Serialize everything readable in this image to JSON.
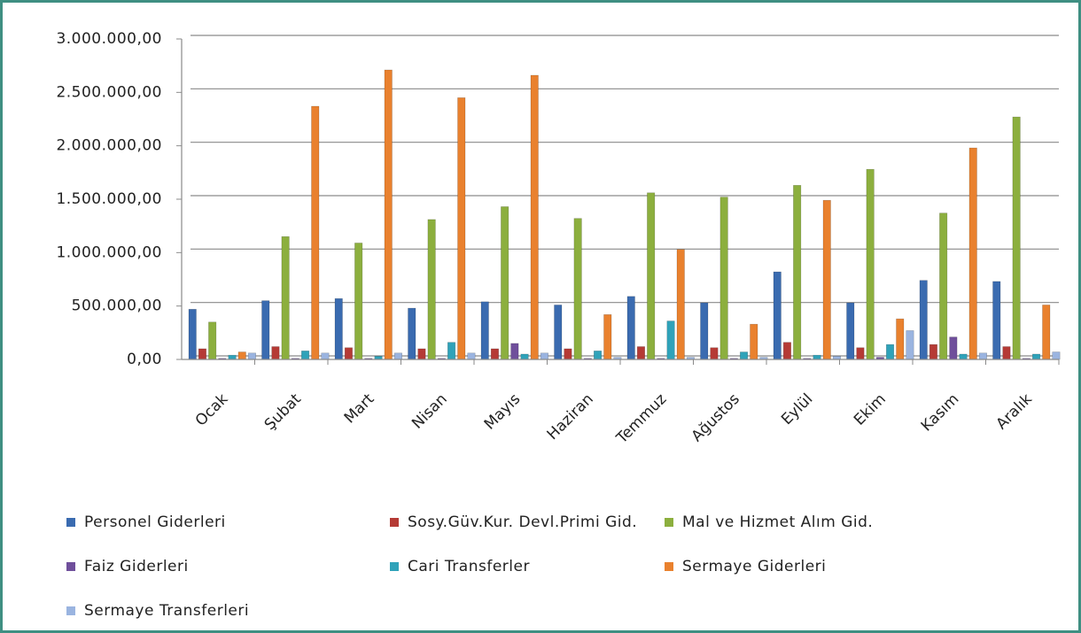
{
  "chart_data": {
    "type": "bar",
    "categories": [
      "Ocak",
      "Şubat",
      "Mart",
      "Nisan",
      "Mayıs",
      "Haziran",
      "Temmuz",
      "Ağustos",
      "Eylül",
      "Ekim",
      "Kasım",
      "Aralık"
    ],
    "series": [
      {
        "name": "Personel Giderleri",
        "color": "#3a6bb0",
        "values": [
          470000,
          550000,
          570000,
          480000,
          540000,
          510000,
          590000,
          530000,
          820000,
          530000,
          740000,
          730000
        ]
      },
      {
        "name": "Sosy.Güv.Kur. Devl.Primi Gid.",
        "color": "#b53a35",
        "values": [
          100000,
          120000,
          110000,
          100000,
          100000,
          100000,
          120000,
          110000,
          160000,
          110000,
          140000,
          120000
        ]
      },
      {
        "name": "Mal ve Hizmet Alım Gid.",
        "color": "#8caf3e",
        "values": [
          350000,
          1150000,
          1090000,
          1310000,
          1430000,
          1320000,
          1560000,
          1520000,
          1630000,
          1780000,
          1370000,
          2270000
        ]
      },
      {
        "name": "Faiz Giderleri",
        "color": "#6f4f9b",
        "values": [
          10000,
          10000,
          10000,
          10000,
          150000,
          10000,
          10000,
          10000,
          10000,
          20000,
          210000,
          10000
        ]
      },
      {
        "name": "Cari Transferler",
        "color": "#2fa2b9",
        "values": [
          40000,
          80000,
          30000,
          160000,
          50000,
          80000,
          360000,
          70000,
          40000,
          140000,
          50000,
          50000
        ]
      },
      {
        "name": "Sermaye Giderleri",
        "color": "#e9812e",
        "values": [
          70000,
          2370000,
          2710000,
          2450000,
          2660000,
          420000,
          1030000,
          330000,
          1490000,
          380000,
          1980000,
          510000
        ]
      },
      {
        "name": "Sermaye Transferleri",
        "color": "#9ab4e0",
        "values": [
          60000,
          60000,
          60000,
          60000,
          60000,
          20000,
          20000,
          20000,
          30000,
          270000,
          60000,
          70000
        ]
      }
    ],
    "ylim": [
      0,
      3000000
    ],
    "yticks": [
      {
        "value": 0,
        "label": "0,00"
      },
      {
        "value": 500000,
        "label": "500.000,00"
      },
      {
        "value": 1000000,
        "label": "1.000.000,00"
      },
      {
        "value": 1500000,
        "label": "1.500.000,00"
      },
      {
        "value": 2000000,
        "label": "2.000.000,00"
      },
      {
        "value": 2500000,
        "label": "2.500.000,00"
      },
      {
        "value": 3000000,
        "label": "3.000.000,00"
      }
    ],
    "grid": true
  }
}
